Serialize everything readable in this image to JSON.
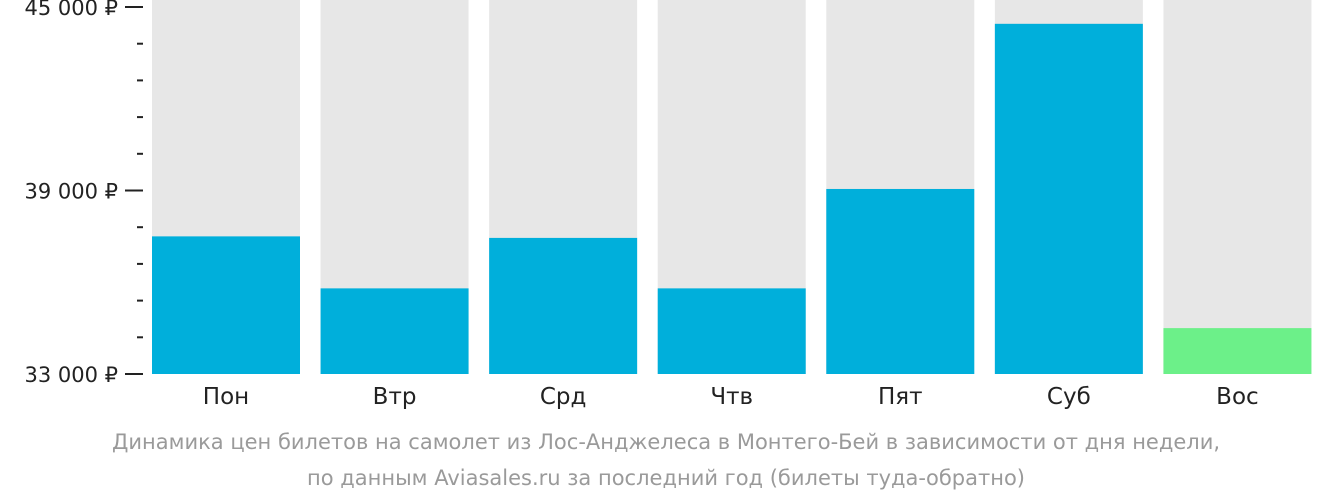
{
  "chart_data": {
    "type": "bar",
    "categories": [
      "Пон",
      "Втр",
      "Срд",
      "Чтв",
      "Пят",
      "Суб",
      "Вос"
    ],
    "values": [
      37500,
      35800,
      37450,
      35800,
      39050,
      44450,
      34500
    ],
    "ylim": [
      33000,
      45000
    ],
    "yticks": [
      33000,
      39000,
      45000
    ],
    "ytick_labels": [
      "33 000 ₽",
      "39 000 ₽",
      "45 000 ₽"
    ],
    "minor_ticks_per_interval": 4,
    "grid": false,
    "colors": {
      "bar": "#00afdb",
      "bar_lowest": "#6cf089",
      "bar_background": "#e7e7e7",
      "axis": "#222222"
    },
    "highlight_index": 6
  },
  "caption": {
    "line1": "Динамика цен билетов на самолет из Лос-Анджелеса в Монтего-Бей в зависимости от дня недели,",
    "line2": "по данным Aviasales.ru за последний год (билеты туда-обратно)"
  }
}
